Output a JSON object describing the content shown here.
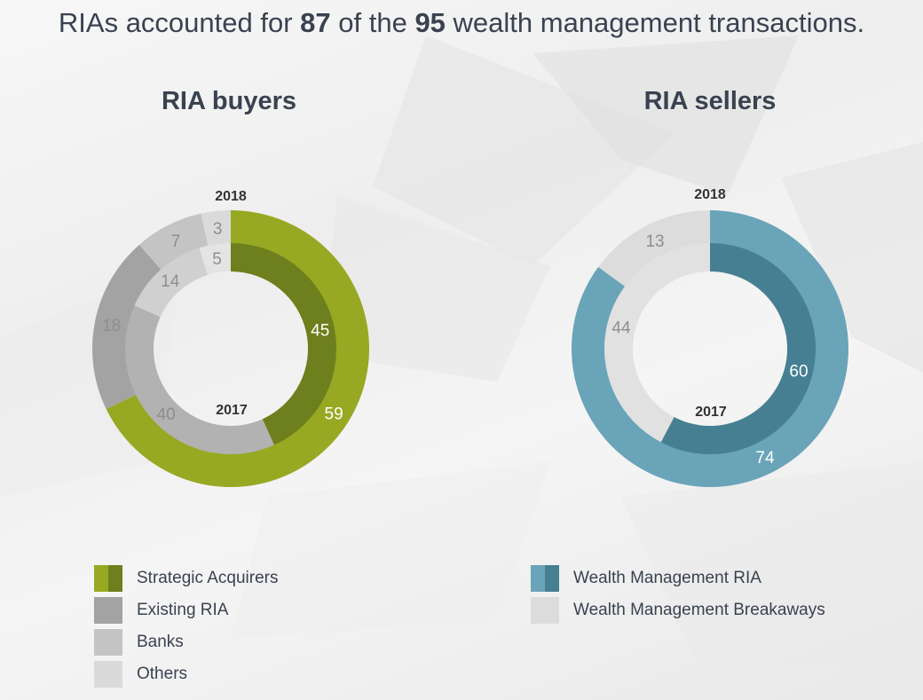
{
  "headline": {
    "pre": "RIAs accounted for ",
    "num1": "87",
    "mid": " of the ",
    "num2": "95",
    "post": " wealth management transactions."
  },
  "chart_data": [
    {
      "type": "pie",
      "title": "RIA buyers",
      "outer_ring_label": "2018",
      "inner_ring_label": "2017",
      "categories": [
        "Strategic Acquirers",
        "Existing RIA",
        "Banks",
        "Others"
      ],
      "series": [
        {
          "name": "2018",
          "values": [
            59,
            18,
            7,
            3
          ]
        },
        {
          "name": "2017",
          "values": [
            45,
            40,
            14,
            5
          ]
        }
      ],
      "colors": {
        "2018": [
          "#97a923",
          "#a3a3a3",
          "#c4c4c4",
          "#dadada"
        ],
        "2017": [
          "#6e7f1d",
          "#b2b2b2",
          "#d0d0d0",
          "#e4e4e4"
        ]
      }
    },
    {
      "type": "pie",
      "title": "RIA sellers",
      "outer_ring_label": "2018",
      "inner_ring_label": "2017",
      "categories": [
        "Wealth Management RIA",
        "Wealth Management Breakaways"
      ],
      "series": [
        {
          "name": "2018",
          "values": [
            74,
            13
          ]
        },
        {
          "name": "2017",
          "values": [
            60,
            44
          ]
        }
      ],
      "colors": {
        "2018": [
          "#6aa4b9",
          "#dcdcdc"
        ],
        "2017": [
          "#467f92",
          "#e1e1e1"
        ]
      }
    }
  ],
  "legends": {
    "buyers": [
      {
        "label": "Strategic Acquirers",
        "colors": [
          "#97a923",
          "#6e7f1d"
        ]
      },
      {
        "label": "Existing RIA",
        "colors": [
          "#a3a3a3",
          "#a3a3a3"
        ]
      },
      {
        "label": "Banks",
        "colors": [
          "#c4c4c4",
          "#c4c4c4"
        ]
      },
      {
        "label": "Others",
        "colors": [
          "#dadada",
          "#dadada"
        ]
      }
    ],
    "sellers": [
      {
        "label": "Wealth Management RIA",
        "colors": [
          "#6aa4b9",
          "#467f92"
        ]
      },
      {
        "label": "Wealth Management Breakaways",
        "colors": [
          "#dcdcdc",
          "#dcdcdc"
        ]
      }
    ]
  }
}
